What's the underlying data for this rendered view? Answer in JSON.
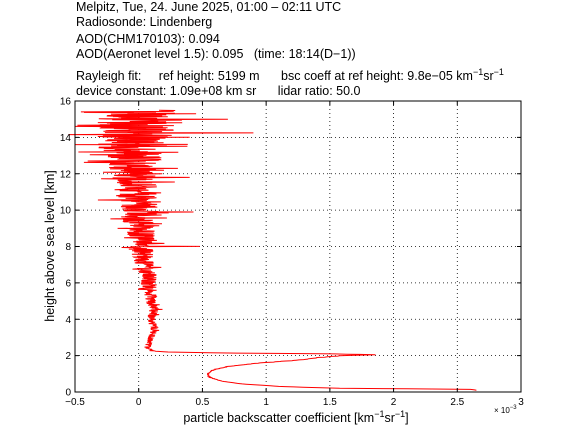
{
  "header": {
    "line1": "Melpitz, Tue, 24. June 2025, 01:00 – 02:11 UTC",
    "line2": "Radiosonde: Lindenberg",
    "line3": "AOD(CHM170103): 0.094",
    "line4": "AOD(Aeronet level 1.5): 0.095   (time: 18:14(D−1))",
    "line5a": "Rayleigh fit:",
    "line5b": "ref height: 5199 m",
    "line5c_pre": "bsc coeff at ref height: 9.8e−05 km",
    "line5c_sup1": "−1",
    "line5c_mid": "sr",
    "line5c_sup2": "−1",
    "line6a": "device constant: 1.09e+08 km sr",
    "line6b": "lidar ratio: 50.0"
  },
  "chart_data": {
    "type": "line",
    "xlabel": "particle backscatter coefficient [km⁻¹sr⁻¹]",
    "xlabel_main": "particle backscatter coefficient [km",
    "xlabel_sup1": "−1",
    "xlabel_mid": "sr",
    "xlabel_sup2": "−1",
    "xlabel_end": "]",
    "x_multiplier": "× 10",
    "x_multiplier_exp": "−3",
    "ylabel": "height above sea level [km]",
    "xlim": [
      -0.5,
      3
    ],
    "ylim": [
      0,
      16
    ],
    "xticks": [
      -0.5,
      0,
      0.5,
      1,
      1.5,
      2,
      2.5,
      3
    ],
    "xtick_labels": [
      "−0.5",
      "0",
      "0.5",
      "1",
      "1.5",
      "2",
      "2.5",
      "3"
    ],
    "yticks": [
      0,
      2,
      4,
      6,
      8,
      10,
      12,
      14,
      16
    ],
    "ytick_labels": [
      "0",
      "2",
      "4",
      "6",
      "8",
      "10",
      "12",
      "14",
      "16"
    ],
    "grid": true,
    "series": [
      {
        "color": "#ff0000",
        "profile": [
          [
            0.1,
            2.65
          ],
          [
            0.15,
            2.6
          ],
          [
            0.2,
            1.6
          ],
          [
            0.3,
            1.12
          ],
          [
            0.45,
            0.8
          ],
          [
            0.6,
            0.65
          ],
          [
            0.8,
            0.56
          ],
          [
            1.0,
            0.54
          ],
          [
            1.2,
            0.58
          ],
          [
            1.4,
            0.7
          ],
          [
            1.6,
            0.95
          ],
          [
            1.75,
            1.25
          ],
          [
            1.9,
            1.42
          ],
          [
            2.0,
            1.6
          ],
          [
            2.05,
            1.85
          ],
          [
            2.1,
            1.5
          ],
          [
            2.15,
            0.6
          ],
          [
            2.2,
            0.22
          ],
          [
            2.25,
            0.12
          ],
          [
            2.4,
            0.07
          ],
          [
            2.6,
            0.08
          ],
          [
            3.0,
            0.1
          ],
          [
            3.5,
            0.12
          ],
          [
            4.0,
            0.1
          ],
          [
            4.5,
            0.12
          ],
          [
            5.0,
            0.09
          ],
          [
            5.5,
            0.1
          ],
          [
            6.0,
            0.08
          ],
          [
            6.5,
            0.07
          ],
          [
            7.0,
            0.05
          ],
          [
            7.5,
            0.04
          ],
          [
            8.0,
            0.03
          ],
          [
            8.5,
            0.02
          ],
          [
            9.0,
            0.02
          ],
          [
            9.5,
            0.0
          ],
          [
            10.0,
            0.0
          ],
          [
            10.5,
            -0.02
          ],
          [
            11.0,
            -0.02
          ],
          [
            11.5,
            -0.03
          ],
          [
            12.0,
            -0.04
          ],
          [
            12.5,
            -0.05
          ],
          [
            13.0,
            -0.05
          ],
          [
            13.5,
            -0.05
          ],
          [
            14.0,
            -0.03
          ],
          [
            14.5,
            -0.02
          ],
          [
            15.0,
            -0.02
          ],
          [
            15.5,
            0.0
          ]
        ],
        "noise": [
          [
            0.0,
            0.0
          ],
          [
            2.3,
            0.03
          ],
          [
            3.0,
            0.05
          ],
          [
            4.0,
            0.06
          ],
          [
            5.0,
            0.08
          ],
          [
            6.0,
            0.12
          ],
          [
            7.0,
            0.13
          ],
          [
            8.0,
            0.18
          ],
          [
            9.0,
            0.22
          ],
          [
            10.0,
            0.28
          ],
          [
            11.0,
            0.3
          ],
          [
            12.0,
            0.35
          ],
          [
            13.0,
            0.45
          ],
          [
            14.0,
            0.55
          ],
          [
            15.0,
            0.55
          ],
          [
            15.5,
            0.55
          ]
        ],
        "spikes": [
          [
            8.0,
            0.48
          ],
          [
            9.9,
            0.43
          ],
          [
            10.55,
            -0.32
          ],
          [
            11.8,
            0.4
          ],
          [
            12.7,
            -0.4
          ],
          [
            13.6,
            -0.5
          ],
          [
            14.25,
            0.9
          ],
          [
            14.6,
            -0.5
          ],
          [
            15.0,
            0.7
          ],
          [
            15.3,
            0.45
          ]
        ],
        "height_step_km": 0.015
      }
    ]
  }
}
